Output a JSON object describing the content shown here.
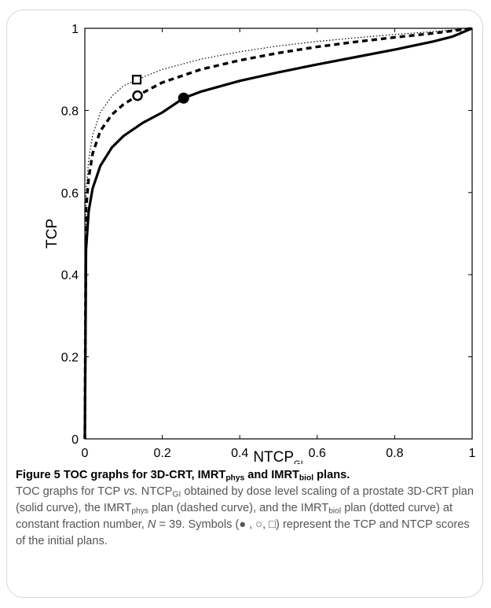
{
  "chart_data": {
    "type": "line",
    "xlabel": "NTCP",
    "xlabel_sub": "GI",
    "ylabel": "TCP",
    "xlim": [
      0,
      1
    ],
    "ylim": [
      0,
      1
    ],
    "xticks": [
      "0",
      "0.2",
      "0.4",
      "0.6",
      "0.8",
      "1"
    ],
    "yticks": [
      "0",
      "0.2",
      "0.4",
      "0.6",
      "0.8",
      "1"
    ],
    "grid": false,
    "series": [
      {
        "style": "solid",
        "x": [
          0,
          0.003,
          0.01,
          0.02,
          0.04,
          0.07,
          0.1,
          0.15,
          0.2,
          0.255,
          0.3,
          0.4,
          0.5,
          0.6,
          0.7,
          0.8,
          0.9,
          0.95,
          1.0
        ],
        "y": [
          0.0,
          0.46,
          0.555,
          0.61,
          0.665,
          0.71,
          0.738,
          0.77,
          0.795,
          0.83,
          0.846,
          0.872,
          0.893,
          0.912,
          0.93,
          0.948,
          0.968,
          0.98,
          1.0
        ]
      },
      {
        "style": "dashed",
        "x": [
          0,
          0.003,
          0.01,
          0.02,
          0.04,
          0.07,
          0.1,
          0.136,
          0.2,
          0.3,
          0.4,
          0.5,
          0.6,
          0.7,
          0.8,
          0.9,
          1.0
        ],
        "y": [
          0.0,
          0.56,
          0.635,
          0.695,
          0.75,
          0.79,
          0.815,
          0.836,
          0.868,
          0.9,
          0.922,
          0.94,
          0.955,
          0.967,
          0.978,
          0.988,
          1.0
        ]
      },
      {
        "style": "dotted",
        "x": [
          0,
          0.003,
          0.01,
          0.02,
          0.04,
          0.07,
          0.1,
          0.134,
          0.2,
          0.3,
          0.4,
          0.5,
          0.6,
          0.7,
          0.8,
          0.9,
          1.0
        ],
        "y": [
          0.0,
          0.6,
          0.68,
          0.74,
          0.795,
          0.835,
          0.86,
          0.875,
          0.9,
          0.925,
          0.943,
          0.957,
          0.968,
          0.977,
          0.985,
          0.992,
          1.0
        ]
      }
    ],
    "markers": [
      {
        "shape": "filled-circle",
        "x": 0.255,
        "y": 0.83
      },
      {
        "shape": "open-circle",
        "x": 0.136,
        "y": 0.836
      },
      {
        "shape": "open-square",
        "x": 0.134,
        "y": 0.875
      }
    ]
  },
  "caption": {
    "title": "Figure 5 TOC graphs for 3D-CRT, IMRT",
    "title_sub1": "phys",
    "title_mid": " and IMRT",
    "title_sub2": "biol",
    "title_end": " plans.",
    "t1": "TOC graphs for TCP ",
    "vs": "vs.",
    "t2": " NTCP",
    "t2_sub": "GI",
    "t3": " obtained by dose level scaling of a prostate 3D-CRT plan (solid curve), the IMRT",
    "t3_sub": "phys",
    "t4": " plan (dashed curve), and the IMRT",
    "t4_sub": "biol",
    "t5": " plan (dotted curve) at constant fraction number, ",
    "n_var": "N",
    "t6": " = 39. Symbols (● , ○, □) represent the TCP and NTCP scores of the initial plans."
  }
}
